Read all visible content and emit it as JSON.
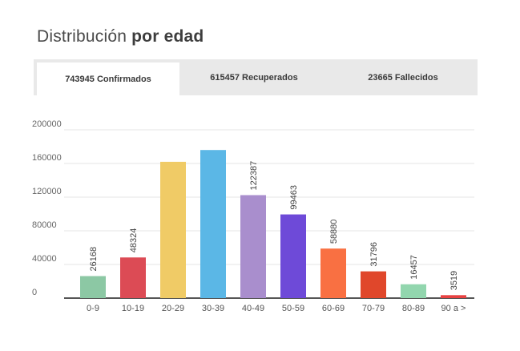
{
  "title": {
    "normal": "Distribución ",
    "bold": "por edad"
  },
  "tabs": [
    {
      "label": "743945 Confirmados",
      "active": true
    },
    {
      "label": "615457 Recuperados",
      "active": false
    },
    {
      "label": "23665 Fallecidos",
      "active": false
    }
  ],
  "chart_data": {
    "type": "bar",
    "categories": [
      "0-9",
      "10-19",
      "20-29",
      "30-39",
      "40-49",
      "50-59",
      "60-69",
      "70-79",
      "80-89",
      "90 a >"
    ],
    "values": [
      26168,
      48324,
      162000,
      176000,
      122387,
      99463,
      58880,
      31796,
      16457,
      3519
    ],
    "value_labels": [
      "26168",
      "48324",
      "",
      "",
      "122387",
      "99463",
      "58880",
      "31796",
      "16457",
      "3519"
    ],
    "colors": [
      "#8cc8a4",
      "#dc4b55",
      "#f0cb66",
      "#5bb7e6",
      "#a98ecd",
      "#6e4ad8",
      "#f97042",
      "#e0472b",
      "#92d6ae",
      "#e84242"
    ],
    "yticks": [
      "0",
      "40000",
      "80000",
      "120000",
      "160000",
      "200000"
    ],
    "ytick_values": [
      0,
      40000,
      80000,
      120000,
      160000,
      200000
    ],
    "ylim": [
      0,
      200000
    ],
    "grid": true
  }
}
